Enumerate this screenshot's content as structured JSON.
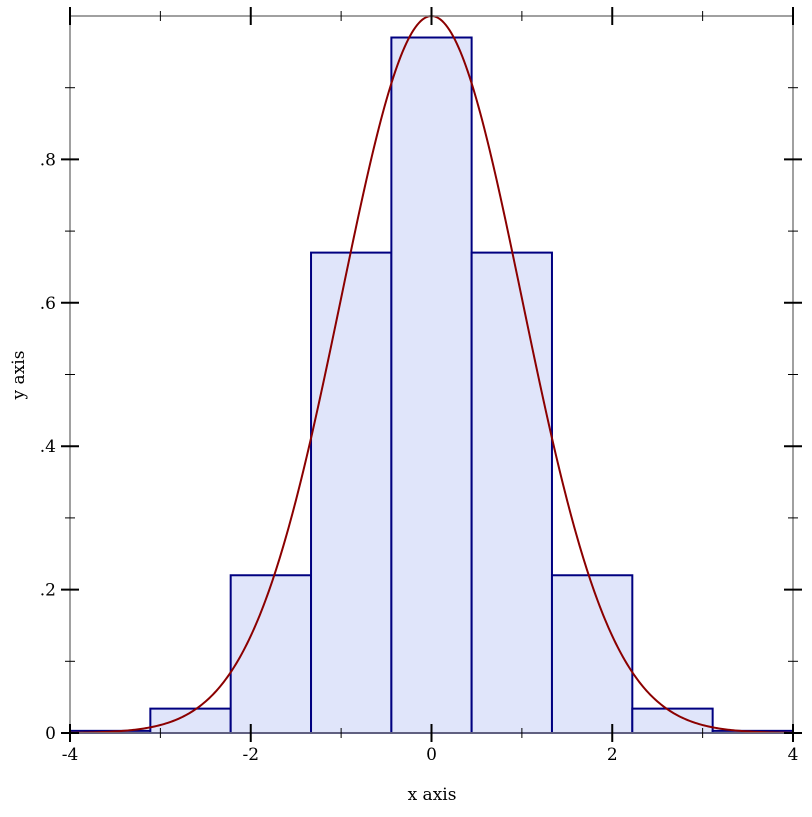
{
  "chart_data": {
    "type": "bar",
    "title": "",
    "xlabel": "x axis",
    "ylabel": "y axis",
    "xlim": [
      -4,
      4
    ],
    "ylim": [
      0,
      1.0
    ],
    "grid": false,
    "x_ticks": [
      -4,
      -2,
      0,
      2,
      4
    ],
    "x_tick_labels": [
      "-4",
      "-2",
      "0",
      "2",
      "4"
    ],
    "y_ticks": [
      0,
      0.2,
      0.4,
      0.6,
      0.8
    ],
    "y_tick_labels": [
      "0",
      ".2",
      ".4",
      ".6",
      ".8"
    ],
    "bin_edges": [
      -4,
      -3.111,
      -2.222,
      -1.333,
      -0.444,
      0.444,
      1.333,
      2.222,
      3.111,
      4
    ],
    "values": [
      0.003,
      0.034,
      0.22,
      0.67,
      0.97,
      0.67,
      0.22,
      0.034,
      0.003
    ],
    "curve": {
      "function": "exp(-x^2/2)",
      "domain": [
        -4,
        4
      ]
    },
    "colors": {
      "bar_fill": "#e0e5fa",
      "bar_edge": "#000080",
      "curve": "#8b0000",
      "frame": "#808080"
    }
  }
}
